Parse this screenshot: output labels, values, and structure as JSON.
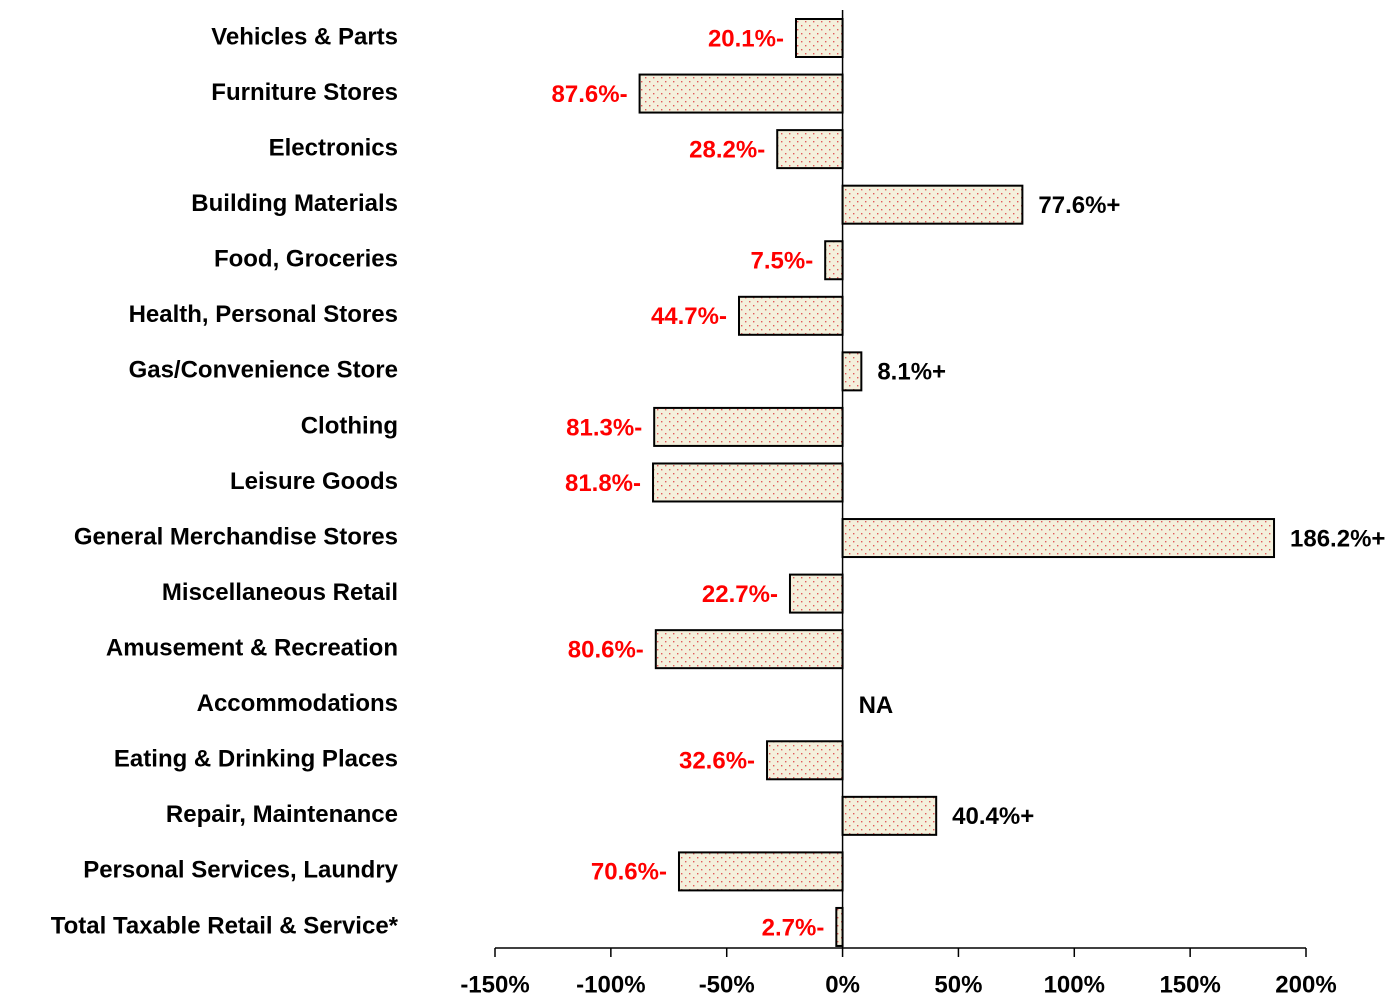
{
  "chart_data": {
    "type": "hbar",
    "categories": [
      "Vehicles & Parts",
      "Furniture Stores",
      "Electronics",
      "Building Materials",
      "Food, Groceries",
      "Health, Personal Stores",
      "Gas/Convenience Store",
      "Clothing",
      "Leisure Goods",
      "General Merchandise Stores",
      "Miscellaneous Retail",
      "Amusement & Recreation",
      "Accommodations",
      "Eating & Drinking Places",
      "Repair, Maintenance",
      "Personal Services, Laundry",
      "Total Taxable Retail & Service*"
    ],
    "values": [
      -20.1,
      -87.6,
      -28.2,
      77.6,
      -7.5,
      -44.7,
      8.1,
      -81.3,
      -81.8,
      186.2,
      -22.7,
      -80.6,
      null,
      -32.6,
      40.4,
      -70.6,
      -2.7
    ],
    "value_labels": [
      "20.1%-",
      "87.6%-",
      "28.2%-",
      "77.6%+",
      "7.5%-",
      "44.7%-",
      "8.1%+",
      "81.3%-",
      "81.8%-",
      "186.2%+",
      "22.7%-",
      "80.6%-",
      "NA",
      "32.6%-",
      "40.4%+",
      "70.6%-",
      "2.7%-"
    ],
    "color": "#f4f0dc",
    "pattern_color": "#e05a5a",
    "negative_label_color": "#ff0000",
    "positive_label_color": "#000000",
    "xlim": [
      -150,
      200
    ],
    "xticks": [
      {
        "value": -150,
        "label": "-150%"
      },
      {
        "value": -100,
        "label": "-100%"
      },
      {
        "value": -50,
        "label": "-50%"
      },
      {
        "value": 0,
        "label": "0%"
      },
      {
        "value": 50,
        "label": "50%"
      },
      {
        "value": 100,
        "label": "100%"
      },
      {
        "value": 150,
        "label": "150%"
      },
      {
        "value": 200,
        "label": "200%"
      }
    ]
  }
}
